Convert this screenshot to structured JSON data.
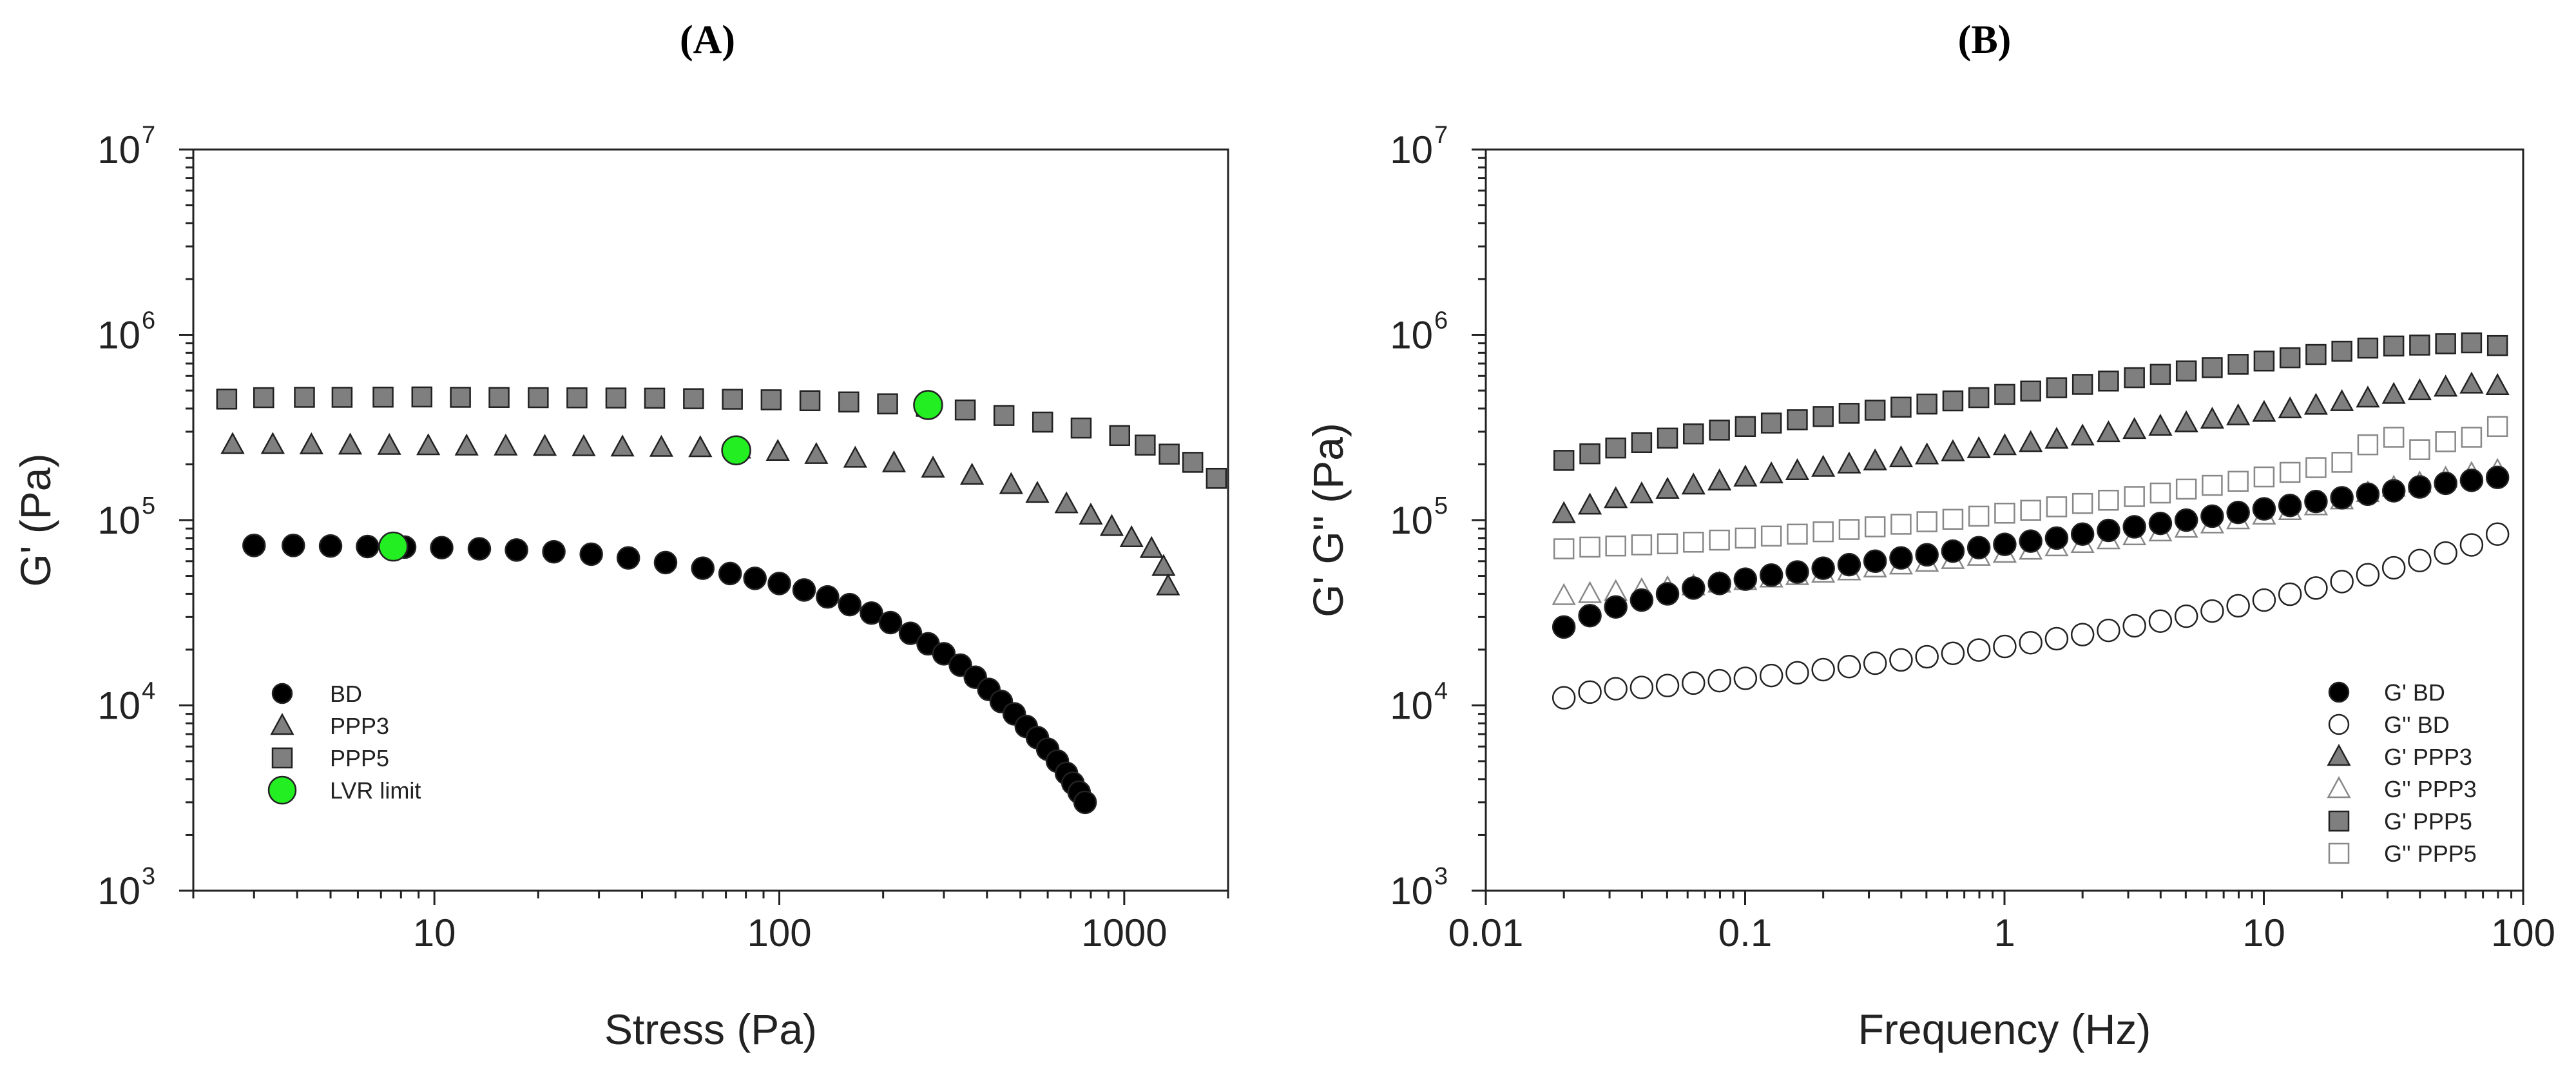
{
  "chart_data": [
    {
      "panel_label": "(A)",
      "type": "scatter",
      "xscale": "log",
      "yscale": "log",
      "xlabel": "Stress (Pa)",
      "ylabel": "G' (Pa)",
      "xlim": [
        2,
        2000
      ],
      "ylim": [
        1000,
        10000000
      ],
      "x_ticks": [
        10,
        100,
        1000
      ],
      "x_tick_labels": [
        "10",
        "100",
        "1000"
      ],
      "y_ticks": [
        1000,
        10000,
        100000,
        1000000,
        10000000
      ],
      "y_tick_bases": [
        "10",
        "10",
        "10",
        "10",
        "10"
      ],
      "y_tick_exponents": [
        "3",
        "4",
        "5",
        "6",
        "7"
      ],
      "legend_position": "bottom-left",
      "series": [
        {
          "name": "BD",
          "marker": "circle",
          "fill": "#000000",
          "x": [
            3.0,
            3.9,
            5.0,
            6.4,
            8.2,
            10.5,
            13.5,
            17.3,
            22.2,
            28.5,
            36.5,
            46.8,
            60.0,
            72.0,
            85.0,
            100.0,
            118.0,
            138.0,
            160.0,
            185.0,
            210.0,
            240.0,
            270.0,
            300.0,
            335.0,
            370.0,
            405.0,
            440.0,
            480.0,
            520.0,
            560.0,
            600.0,
            640.0,
            680.0,
            710.0,
            740.0,
            770.0
          ],
          "y": [
            73000,
            73000,
            72500,
            72000,
            71500,
            71000,
            70000,
            69000,
            67500,
            65500,
            62500,
            59000,
            55000,
            51500,
            48500,
            45500,
            42000,
            38500,
            35000,
            31500,
            28000,
            24500,
            21500,
            19000,
            16500,
            14200,
            12200,
            10500,
            9000,
            7700,
            6700,
            5800,
            5000,
            4300,
            3800,
            3400,
            3000
          ]
        },
        {
          "name": "PPP3",
          "marker": "triangle",
          "fill": "#7f7f7f",
          "x": [
            2.6,
            3.4,
            4.4,
            5.7,
            7.4,
            9.6,
            12.4,
            16.1,
            20.9,
            27.1,
            35.1,
            45.5,
            59.0,
            76.5,
            99.0,
            128.0,
            166.0,
            215.0,
            279.0,
            362.0,
            470.0,
            560.0,
            680.0,
            800.0,
            920.0,
            1050.0,
            1200.0,
            1300.0,
            1340.0
          ],
          "y": [
            255000,
            255000,
            254000,
            253000,
            252000,
            251000,
            250000,
            250000,
            249000,
            248000,
            247000,
            246000,
            245000,
            241000,
            234000,
            225000,
            215000,
            203000,
            190000,
            174000,
            155000,
            139000,
            122000,
            106000,
            92000,
            80000,
            70000,
            56000,
            44000
          ]
        },
        {
          "name": "PPP5",
          "marker": "square",
          "fill": "#7f7f7f",
          "x": [
            2.5,
            3.2,
            4.2,
            5.4,
            7.1,
            9.2,
            11.9,
            15.4,
            20.0,
            25.9,
            33.6,
            43.5,
            56.4,
            73.1,
            94.7,
            122.7,
            159.0,
            206.0,
            267.0,
            346.0,
            448.0,
            580.0,
            750.0,
            970.0,
            1150.0,
            1350.0,
            1580.0,
            1850.0
          ],
          "y": [
            450000,
            458000,
            460000,
            460000,
            461000,
            462000,
            460000,
            459000,
            458000,
            457000,
            456000,
            455000,
            452000,
            449000,
            446000,
            441000,
            434000,
            424000,
            411000,
            393000,
            367000,
            338000,
            314000,
            286000,
            254000,
            227000,
            205000,
            168000
          ]
        },
        {
          "name": "LVR limit",
          "marker": "circle",
          "fill": "#22ee22",
          "x": [
            7.6,
            75.0,
            270.0
          ],
          "y": [
            72000,
            238000,
            418000
          ]
        }
      ]
    },
    {
      "panel_label": "(B)",
      "type": "scatter",
      "xscale": "log",
      "yscale": "log",
      "xlabel": "Frequency (Hz)",
      "ylabel": "G'  G'' (Pa)",
      "xlim": [
        0.01,
        100
      ],
      "ylim": [
        1000,
        10000000
      ],
      "x_ticks": [
        0.01,
        0.1,
        1,
        10,
        100
      ],
      "x_tick_labels": [
        "0.01",
        "0.1",
        "1",
        "10",
        "100"
      ],
      "y_ticks": [
        1000,
        10000,
        100000,
        1000000,
        10000000
      ],
      "y_tick_bases": [
        "10",
        "10",
        "10",
        "10",
        "10"
      ],
      "y_tick_exponents": [
        "3",
        "4",
        "5",
        "6",
        "7"
      ],
      "legend_position": "bottom-right",
      "x": [
        0.02,
        0.0252,
        0.0317,
        0.0399,
        0.0502,
        0.0632,
        0.0796,
        0.1002,
        0.1262,
        0.1589,
        0.2,
        0.2518,
        0.317,
        0.3991,
        0.5024,
        0.6325,
        0.7962,
        1.0024,
        1.262,
        1.5887,
        2.0,
        2.5179,
        3.1698,
        3.9905,
        5.0238,
        6.3245,
        7.9621,
        10.0236,
        12.619,
        15.886,
        20.0,
        25.178,
        31.697,
        39.904,
        50.236,
        63.243,
        79.62
      ],
      "series": [
        {
          "name": "G' BD",
          "marker": "circle",
          "fill": "#000000",
          "y": [
            26500,
            30500,
            34000,
            37000,
            40000,
            43000,
            45500,
            48000,
            50500,
            52500,
            55000,
            57500,
            60000,
            62500,
            65000,
            68000,
            71000,
            74000,
            77000,
            80000,
            84000,
            88000,
            92000,
            96000,
            100000,
            105000,
            110000,
            115000,
            120000,
            126000,
            132000,
            138000,
            144000,
            151000,
            158000,
            164000,
            170000
          ]
        },
        {
          "name": "G'' BD",
          "marker": "circle",
          "fill": "none",
          "y": [
            11000,
            11800,
            12300,
            12500,
            12800,
            13200,
            13600,
            14000,
            14500,
            15000,
            15600,
            16200,
            16900,
            17600,
            18300,
            19100,
            19900,
            20800,
            21800,
            22900,
            24100,
            25400,
            26900,
            28500,
            30300,
            32300,
            34500,
            37000,
            39800,
            43000,
            46600,
            50700,
            55300,
            60500,
            66500,
            73500,
            84000
          ]
        },
        {
          "name": "G' PPP3",
          "marker": "triangle",
          "fill": "#7f7f7f",
          "y": [
            108000,
            120000,
            130000,
            138000,
            146000,
            154000,
            162000,
            170000,
            177000,
            184000,
            192000,
            200000,
            208000,
            216000,
            224000,
            233000,
            242000,
            251000,
            261000,
            272000,
            283000,
            295000,
            307000,
            320000,
            334000,
            349000,
            364000,
            380000,
            397000,
            415000,
            434000,
            454000,
            475000,
            497000,
            520000,
            540000,
            530000
          ]
        },
        {
          "name": "G'' PPP3",
          "marker": "triangle",
          "fill": "none",
          "y": [
            39000,
            40000,
            41000,
            42000,
            43000,
            44000,
            45500,
            47000,
            48500,
            50000,
            51500,
            53000,
            55000,
            57000,
            59000,
            61000,
            63500,
            66000,
            68500,
            71500,
            74500,
            78000,
            82000,
            86000,
            90000,
            95000,
            100000,
            106000,
            112000,
            119000,
            128000,
            140000,
            150000,
            158000,
            168000,
            178000,
            185000
          ]
        },
        {
          "name": "G' PPP5",
          "marker": "square",
          "fill": "#7f7f7f",
          "y": [
            210000,
            228000,
            245000,
            262000,
            277000,
            292000,
            306000,
            320000,
            334000,
            348000,
            362000,
            377000,
            392000,
            407000,
            423000,
            440000,
            458000,
            477000,
            497000,
            518000,
            540000,
            563000,
            587000,
            612000,
            638000,
            665000,
            693000,
            722000,
            752000,
            783000,
            815000,
            848000,
            870000,
            880000,
            895000,
            905000,
            875000
          ]
        },
        {
          "name": "G'' PPP5",
          "marker": "square",
          "fill": "none",
          "y": [
            70000,
            71500,
            72500,
            73500,
            74500,
            76000,
            78000,
            80000,
            82000,
            84000,
            86500,
            89000,
            92000,
            95000,
            98000,
            101000,
            105000,
            109000,
            113000,
            118000,
            123000,
            128000,
            134000,
            140000,
            147000,
            154000,
            162000,
            171000,
            181000,
            192000,
            205000,
            255000,
            280000,
            240000,
            265000,
            280000,
            320000
          ]
        }
      ]
    }
  ]
}
